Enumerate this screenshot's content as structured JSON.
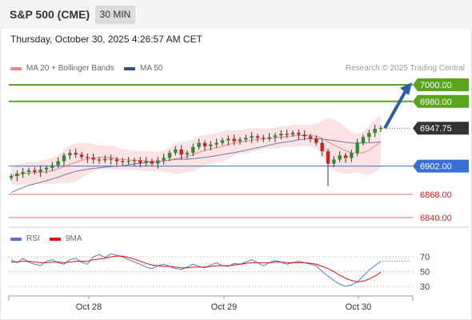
{
  "header": {
    "title": "S&P 500 (CME)",
    "timeframe": "30 MIN",
    "timestamp": "Thursday, October 30, 2025 4:26:57 AM CET"
  },
  "legend": {
    "ma20": "MA 20 + Bollinger Bands",
    "ma50": "MA 50",
    "credit": "Research © 2025 Trading Central"
  },
  "rsi_legend": {
    "rsi": "RSI",
    "ma": "9MA"
  },
  "colors": {
    "candle_up": "#2e8b2e",
    "candle_down": "#cc2222",
    "ma20": "#e88888",
    "bands_fill": "#fbe3e3",
    "ma50": "#6a7aa8",
    "resistance": "#5aa51e",
    "support_blue": "#3a6fd8",
    "support_red": "#e07070",
    "price_tag": "#333333",
    "arrow": "#2a5ea8",
    "rsi_line": "#5577cc",
    "rsi_ma": "#dd1111"
  },
  "chart_data": [
    {
      "type": "line",
      "title": "",
      "x_axis_labels": [
        "Oct 28",
        "Oct 29",
        "Oct 30"
      ],
      "series": [
        {
          "name": "MA 20 + Bollinger Bands"
        },
        {
          "name": "MA 50"
        }
      ],
      "ylim": [
        6820,
        7010
      ],
      "close_prices": [
        6890,
        6893,
        6895,
        6897,
        6895,
        6898,
        6900,
        6903,
        6908,
        6915,
        6918,
        6916,
        6913,
        6912,
        6910,
        6909,
        6911,
        6910,
        6908,
        6907,
        6908,
        6909,
        6906,
        6908,
        6905,
        6909,
        6912,
        6918,
        6922,
        6916,
        6918,
        6925,
        6930,
        6926,
        6928,
        6930,
        6933,
        6935,
        6932,
        6934,
        6936,
        6938,
        6936,
        6935,
        6937,
        6939,
        6941,
        6940,
        6942,
        6940,
        6938,
        6935,
        6930,
        6920,
        6905,
        6910,
        6915,
        6912,
        6918,
        6930,
        6937,
        6942,
        6947,
        6948
      ],
      "price_levels": [
        {
          "label": "7000.00",
          "value": 7000.0,
          "kind": "resistance"
        },
        {
          "label": "6980.00",
          "value": 6980.0,
          "kind": "resistance"
        },
        {
          "label": "6947.75",
          "value": 6947.75,
          "kind": "last"
        },
        {
          "label": "6902.00",
          "value": 6902.0,
          "kind": "pivot"
        },
        {
          "label": "6868.00",
          "value": 6868.0,
          "kind": "support"
        },
        {
          "label": "6840.00",
          "value": 6840.0,
          "kind": "support"
        }
      ],
      "projection": {
        "from": 6947.75,
        "to": 7000.0
      }
    },
    {
      "type": "line",
      "title": "RSI",
      "series": [
        {
          "name": "RSI",
          "values": [
            66,
            62,
            68,
            63,
            60,
            58,
            64,
            66,
            62,
            60,
            66,
            68,
            63,
            60,
            70,
            73,
            69,
            74,
            72,
            70,
            66,
            63,
            60,
            56,
            54,
            58,
            60,
            57,
            54,
            53,
            56,
            60,
            57,
            55,
            59,
            62,
            58,
            57,
            61,
            60,
            63,
            66,
            62,
            58,
            62,
            65,
            63,
            60,
            62,
            64,
            62,
            60,
            58,
            50,
            44,
            38,
            33,
            30,
            32,
            36,
            44,
            52,
            58,
            64
          ]
        },
        {
          "name": "9MA",
          "values": [
            63,
            63,
            64,
            64,
            63,
            62,
            62,
            63,
            63,
            62,
            63,
            64,
            64,
            64,
            66,
            67,
            68,
            70,
            71,
            71,
            69,
            67,
            64,
            61,
            59,
            58,
            57,
            57,
            56,
            55,
            55,
            56,
            56,
            56,
            57,
            58,
            58,
            58,
            59,
            60,
            61,
            62,
            62,
            62,
            62,
            63,
            63,
            62,
            62,
            62,
            62,
            61,
            60,
            57,
            54,
            50,
            45,
            41,
            38,
            36,
            37,
            40,
            44,
            49
          ]
        }
      ],
      "ylim": [
        20,
        80
      ],
      "y_ticks": [
        "70",
        "50",
        "30"
      ]
    }
  ]
}
